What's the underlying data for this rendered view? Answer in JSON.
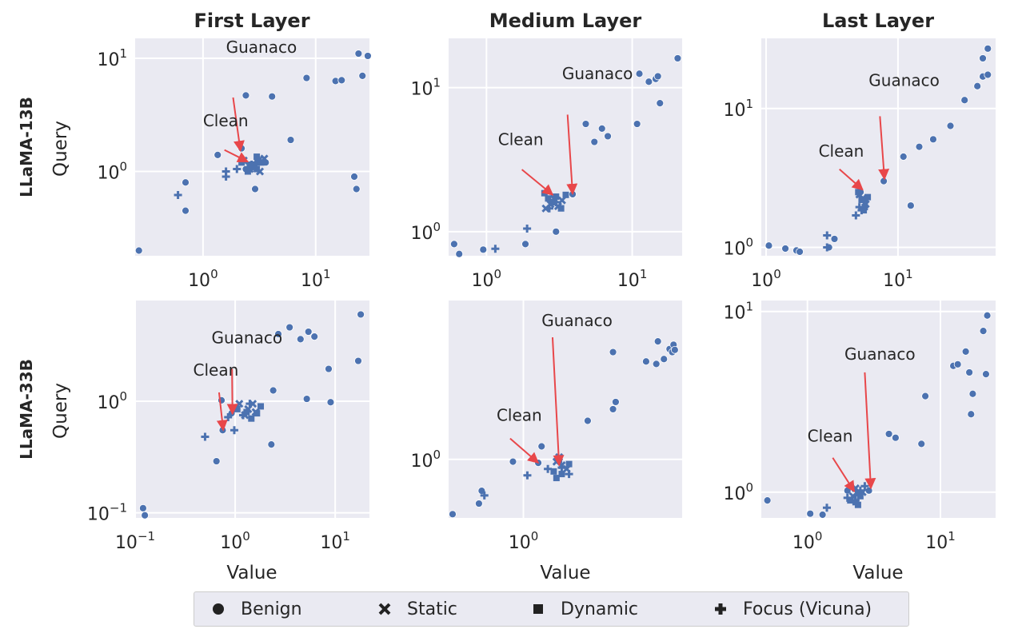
{
  "chart_data": {
    "type": "scatter",
    "x_scale": "log",
    "y_scale": "log",
    "grid": true,
    "legend_placement": "bottom-center",
    "column_titles": [
      "First Layer",
      "Medium Layer",
      "Last Layer"
    ],
    "row_labels": [
      "LLaMA-13B",
      "LLaMA-33B"
    ],
    "xlabel": "Value",
    "ylabel": "Query",
    "series_names": [
      "Benign",
      "Static",
      "Dynamic",
      "Focus (Vicuna)"
    ],
    "colors": {
      "points": "#4c72b0",
      "arrow": "#e8474a",
      "panel_bg": "#eaeaf2",
      "grid": "#ffffff"
    },
    "panels": [
      {
        "row": "LLaMA-13B",
        "col": "First Layer",
        "xlim": [
          0.25,
          30
        ],
        "ylim": [
          0.18,
          15
        ],
        "xticks": [
          {
            "v": 1,
            "label": "10^0"
          },
          {
            "v": 10,
            "label": "10^1"
          }
        ],
        "yticks": [
          {
            "v": 1,
            "label": "10^0"
          },
          {
            "v": 10,
            "label": "10^1"
          }
        ],
        "annotations": [
          {
            "text": "Guanaco",
            "text_at": [
              1.6,
              11.2
            ],
            "arrow_from": [
              1.85,
              4.5
            ],
            "arrow_to": [
              2.15,
              1.52
            ]
          },
          {
            "text": "Clean",
            "text_at": [
              1.0,
              2.5
            ],
            "arrow_from": [
              1.55,
              1.55
            ],
            "arrow_to": [
              2.5,
              1.22
            ]
          }
        ],
        "benign": [
          [
            0.27,
            0.2
          ],
          [
            0.7,
            0.8
          ],
          [
            0.7,
            0.45
          ],
          [
            1.35,
            1.4
          ],
          [
            2.2,
            1.6
          ],
          [
            2.4,
            4.7
          ],
          [
            3.6,
            1.2
          ],
          [
            4.1,
            4.6
          ],
          [
            6,
            1.9
          ],
          [
            8.3,
            6.7
          ],
          [
            15,
            6.3
          ],
          [
            17,
            6.4
          ],
          [
            22,
            0.9
          ],
          [
            23,
            0.7
          ],
          [
            24,
            11
          ],
          [
            26,
            7
          ],
          [
            29,
            10.5
          ],
          [
            2.9,
            0.7
          ],
          [
            2.4,
            1.05
          ],
          [
            2.6,
            1.15
          ]
        ],
        "static": [
          [
            2.3,
            1.25
          ],
          [
            2.9,
            1.1
          ],
          [
            3.1,
            1.25
          ],
          [
            3.5,
            1.3
          ],
          [
            2.6,
            1.05
          ],
          [
            3.2,
            1.0
          ]
        ],
        "dynamic": [
          [
            2.2,
            1.2
          ],
          [
            2.5,
            1.0
          ],
          [
            2.8,
            1.15
          ],
          [
            3.0,
            1.35
          ],
          [
            3.3,
            1.2
          ],
          [
            3.0,
            1.05
          ]
        ],
        "focus": [
          [
            0.6,
            0.62
          ],
          [
            1.6,
            1.0
          ],
          [
            1.6,
            0.9
          ],
          [
            2.0,
            1.05
          ],
          [
            2.7,
            1.15
          ],
          [
            3.1,
            1.25
          ]
        ]
      },
      {
        "row": "LLaMA-13B",
        "col": "Medium Layer",
        "xlim": [
          0.55,
          22
        ],
        "ylim": [
          0.68,
          22
        ],
        "xticks": [
          {
            "v": 1,
            "label": "10^0"
          },
          {
            "v": 10,
            "label": "10^1"
          }
        ],
        "yticks": [
          {
            "v": 1,
            "label": "10^0"
          },
          {
            "v": 10,
            "label": "10^1"
          }
        ],
        "annotations": [
          {
            "text": "Guanaco",
            "text_at": [
              3.3,
              11.5
            ],
            "arrow_from": [
              3.6,
              6.5
            ],
            "arrow_to": [
              3.9,
              1.83
            ]
          },
          {
            "text": "Clean",
            "text_at": [
              1.2,
              4.0
            ],
            "arrow_from": [
              1.75,
              2.7
            ],
            "arrow_to": [
              2.85,
              1.8
            ]
          }
        ],
        "benign": [
          [
            0.6,
            0.82
          ],
          [
            0.65,
            0.7
          ],
          [
            0.95,
            0.75
          ],
          [
            1.85,
            0.82
          ],
          [
            3.0,
            1.0
          ],
          [
            3.9,
            1.82
          ],
          [
            4.8,
            5.6
          ],
          [
            5.5,
            4.2
          ],
          [
            6.2,
            5.2
          ],
          [
            6.8,
            4.6
          ],
          [
            10.8,
            5.6
          ],
          [
            11.2,
            12.5
          ],
          [
            13,
            11
          ],
          [
            14.5,
            11.5
          ],
          [
            15,
            12
          ],
          [
            15.5,
            7.8
          ],
          [
            20.5,
            16
          ]
        ],
        "static": [
          [
            2.55,
            1.45
          ],
          [
            2.75,
            1.55
          ],
          [
            3.1,
            1.5
          ],
          [
            3.3,
            1.65
          ],
          [
            2.9,
            1.7
          ]
        ],
        "dynamic": [
          [
            2.5,
            1.85
          ],
          [
            2.8,
            1.6
          ],
          [
            3.0,
            1.75
          ],
          [
            3.25,
            1.45
          ],
          [
            3.5,
            1.8
          ],
          [
            2.65,
            1.7
          ]
        ],
        "focus": [
          [
            1.15,
            0.76
          ],
          [
            1.9,
            1.05
          ],
          [
            2.7,
            1.45
          ],
          [
            3.0,
            1.6
          ],
          [
            3.2,
            1.5
          ]
        ]
      },
      {
        "row": "LLaMA-13B",
        "col": "Last Layer",
        "xlim": [
          0.92,
          55
        ],
        "ylim": [
          0.87,
          32
        ],
        "xticks": [
          {
            "v": 1,
            "label": "10^0"
          },
          {
            "v": 10,
            "label": "10^1"
          }
        ],
        "yticks": [
          {
            "v": 1,
            "label": "10^0"
          },
          {
            "v": 10,
            "label": "10^1"
          }
        ],
        "annotations": [
          {
            "text": "Guanaco",
            "text_at": [
              6.0,
              14.5
            ],
            "arrow_from": [
              7.3,
              8.8
            ],
            "arrow_to": [
              7.9,
              3.1
            ]
          },
          {
            "text": "Clean",
            "text_at": [
              2.5,
              4.5
            ],
            "arrow_from": [
              3.6,
              3.65
            ],
            "arrow_to": [
              5.4,
              2.6
            ]
          }
        ],
        "benign": [
          [
            1.05,
            1.03
          ],
          [
            1.4,
            0.98
          ],
          [
            1.7,
            0.95
          ],
          [
            1.8,
            0.93
          ],
          [
            3.0,
            1.0
          ],
          [
            3.3,
            1.15
          ],
          [
            5.2,
            2.5
          ],
          [
            7.8,
            3.0
          ],
          [
            11,
            4.5
          ],
          [
            12.5,
            2.0
          ],
          [
            14.5,
            5.3
          ],
          [
            18.5,
            6.0
          ],
          [
            25,
            7.5
          ],
          [
            32,
            11.5
          ],
          [
            40,
            14.5
          ],
          [
            44,
            17.0
          ],
          [
            44,
            23
          ],
          [
            48,
            17.5
          ],
          [
            48,
            27
          ]
        ],
        "static": [
          [
            5.1,
            2.4
          ],
          [
            5.4,
            2.25
          ],
          [
            5.7,
            2.05
          ]
        ],
        "dynamic": [
          [
            5.0,
            2.5
          ],
          [
            5.3,
            2.2
          ],
          [
            5.6,
            1.95
          ],
          [
            5.9,
            2.3
          ],
          [
            5.5,
            1.85
          ]
        ],
        "focus": [
          [
            2.9,
            1.22
          ],
          [
            2.9,
            1.0
          ],
          [
            4.8,
            1.7
          ],
          [
            5.3,
            1.85
          ],
          [
            5.5,
            2.15
          ],
          [
            5.1,
            1.95
          ]
        ]
      },
      {
        "row": "LLaMA-33B",
        "col": "First Layer",
        "xlim": [
          0.1,
          22
        ],
        "ylim": [
          0.09,
          8
        ],
        "xticks": [
          {
            "v": 0.1,
            "label": "10^-1"
          },
          {
            "v": 1,
            "label": "10^0"
          },
          {
            "v": 10,
            "label": "10^1"
          }
        ],
        "yticks": [
          {
            "v": 0.1,
            "label": "10^-1"
          },
          {
            "v": 1,
            "label": "10^0"
          }
        ],
        "annotations": [
          {
            "text": "Guanaco",
            "text_at": [
              0.58,
              3.3
            ],
            "arrow_from": [
              0.93,
              1.95
            ],
            "arrow_to": [
              0.94,
              0.77
            ]
          },
          {
            "text": "Clean",
            "text_at": [
              0.38,
              1.7
            ],
            "arrow_from": [
              0.69,
              1.2
            ],
            "arrow_to": [
              0.76,
              0.55
            ]
          }
        ],
        "benign": [
          [
            0.12,
            0.11
          ],
          [
            0.125,
            0.095
          ],
          [
            0.65,
            0.29
          ],
          [
            0.73,
            1.02
          ],
          [
            0.75,
            0.55
          ],
          [
            0.92,
            0.78
          ],
          [
            2.3,
            0.41
          ],
          [
            2.4,
            1.25
          ],
          [
            2.7,
            4.0
          ],
          [
            3.5,
            4.6
          ],
          [
            4.5,
            3.6
          ],
          [
            5.2,
            1.05
          ],
          [
            5.4,
            4.2
          ],
          [
            6.2,
            3.8
          ],
          [
            8.6,
            1.95
          ],
          [
            9,
            0.98
          ],
          [
            17,
            2.3
          ],
          [
            18,
            6
          ]
        ],
        "static": [
          [
            1.1,
            0.95
          ],
          [
            1.35,
            0.85
          ],
          [
            1.5,
            0.95
          ],
          [
            1.25,
            0.75
          ],
          [
            1.6,
            0.8
          ]
        ],
        "dynamic": [
          [
            1.05,
            0.85
          ],
          [
            1.3,
            0.8
          ],
          [
            1.45,
            0.7
          ],
          [
            1.65,
            0.78
          ],
          [
            1.8,
            0.9
          ]
        ],
        "focus": [
          [
            0.5,
            0.48
          ],
          [
            0.85,
            0.72
          ],
          [
            0.98,
            0.55
          ],
          [
            1.2,
            0.75
          ],
          [
            1.4,
            0.95
          ]
        ]
      },
      {
        "row": "LLaMA-33B",
        "col": "Medium Layer",
        "xlim": [
          0.4,
          7
        ],
        "ylim": [
          0.6,
          4.0
        ],
        "xticks": [
          {
            "v": 1,
            "label": "10^0"
          }
        ],
        "yticks": [
          {
            "v": 1,
            "label": "10^0"
          }
        ],
        "annotations": [
          {
            "text": "Guanaco",
            "text_at": [
              1.25,
              3.2
            ],
            "arrow_from": [
              1.43,
              2.9
            ],
            "arrow_to": [
              1.55,
              0.95
            ]
          },
          {
            "text": "Clean",
            "text_at": [
              0.72,
              1.4
            ],
            "arrow_from": [
              0.85,
              1.2
            ],
            "arrow_to": [
              1.2,
              0.97
            ]
          }
        ],
        "benign": [
          [
            0.42,
            0.62
          ],
          [
            0.58,
            0.68
          ],
          [
            0.6,
            0.76
          ],
          [
            0.88,
            0.98
          ],
          [
            1.2,
            0.97
          ],
          [
            1.25,
            1.12
          ],
          [
            1.55,
            0.98
          ],
          [
            2.2,
            1.4
          ],
          [
            3.0,
            1.55
          ],
          [
            3.1,
            1.65
          ],
          [
            3.0,
            2.55
          ],
          [
            4.5,
            2.35
          ],
          [
            5.1,
            2.3
          ],
          [
            5.2,
            2.8
          ],
          [
            5.6,
            2.4
          ],
          [
            6.0,
            2.62
          ],
          [
            6.2,
            2.55
          ],
          [
            6.3,
            2.72
          ],
          [
            6.4,
            2.6
          ]
        ],
        "static": [
          [
            1.5,
            0.98
          ],
          [
            1.6,
            0.95
          ],
          [
            1.7,
            0.92
          ],
          [
            1.55,
            1.02
          ]
        ],
        "dynamic": [
          [
            1.45,
            0.9
          ],
          [
            1.6,
            0.88
          ],
          [
            1.75,
            0.96
          ],
          [
            1.5,
            0.85
          ]
        ],
        "focus": [
          [
            0.62,
            0.73
          ],
          [
            1.05,
            0.87
          ],
          [
            1.35,
            0.92
          ],
          [
            1.6,
            0.93
          ],
          [
            1.75,
            0.88
          ]
        ]
      },
      {
        "row": "LLaMA-33B",
        "col": "Last Layer",
        "xlim": [
          0.45,
          26
        ],
        "ylim": [
          0.72,
          11.5
        ],
        "xticks": [
          {
            "v": 1,
            "label": "10^0"
          },
          {
            "v": 10,
            "label": "10^1"
          }
        ],
        "yticks": [
          {
            "v": 1,
            "label": "10^0"
          },
          {
            "v": 10,
            "label": "10^1"
          }
        ],
        "annotations": [
          {
            "text": "Guanaco",
            "text_at": [
              1.9,
              5.4
            ],
            "arrow_from": [
              2.7,
              4.6
            ],
            "arrow_to": [
              3.0,
              1.05
            ]
          },
          {
            "text": "Clean",
            "text_at": [
              1.0,
              1.9
            ],
            "arrow_from": [
              1.55,
              1.55
            ],
            "arrow_to": [
              2.25,
              1.01
            ]
          }
        ],
        "benign": [
          [
            0.5,
            0.9
          ],
          [
            1.05,
            0.76
          ],
          [
            1.3,
            0.75
          ],
          [
            2.0,
            1.02
          ],
          [
            2.9,
            1.02
          ],
          [
            4.1,
            2.1
          ],
          [
            4.6,
            2.0
          ],
          [
            7.2,
            1.85
          ],
          [
            7.7,
            3.4
          ],
          [
            12.5,
            5.0
          ],
          [
            13.5,
            5.1
          ],
          [
            15.5,
            6.0
          ],
          [
            16.5,
            4.6
          ],
          [
            17.5,
            3.5
          ],
          [
            17,
            2.7
          ],
          [
            21,
            7.8
          ],
          [
            22,
            4.5
          ],
          [
            22.5,
            9.5
          ]
        ],
        "static": [
          [
            2.2,
            0.95
          ],
          [
            2.4,
            0.98
          ],
          [
            2.6,
            1.0
          ],
          [
            2.3,
            1.05
          ]
        ],
        "dynamic": [
          [
            2.1,
            0.9
          ],
          [
            2.3,
            0.88
          ],
          [
            2.5,
            0.95
          ],
          [
            2.4,
            0.85
          ]
        ],
        "focus": [
          [
            1.4,
            0.82
          ],
          [
            2.0,
            0.93
          ],
          [
            2.3,
            0.9
          ],
          [
            2.5,
            1.02
          ],
          [
            2.7,
            1.08
          ]
        ]
      }
    ]
  }
}
